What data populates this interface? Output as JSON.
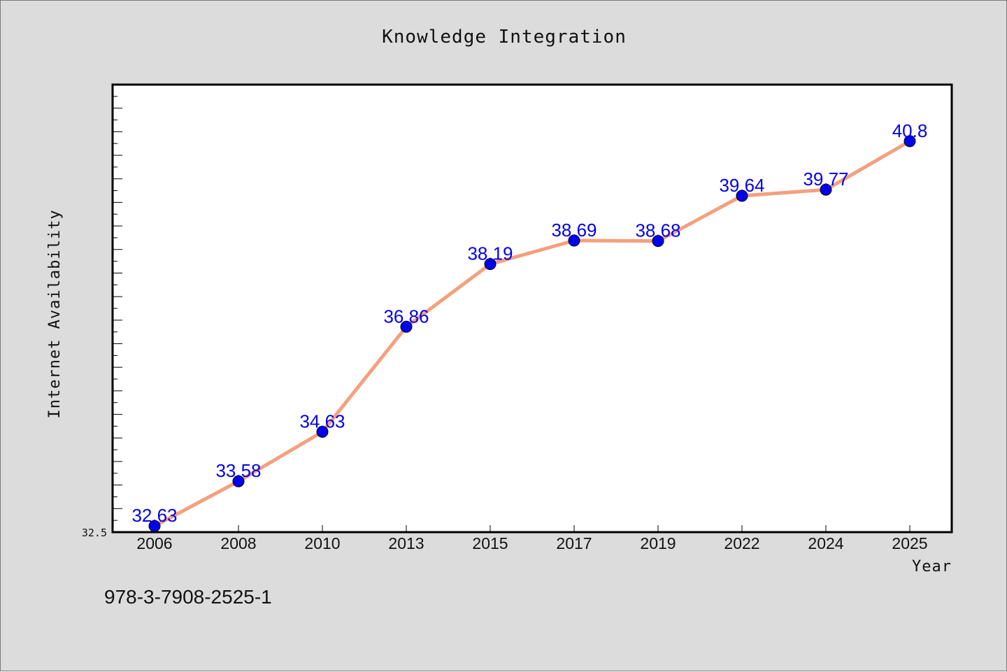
{
  "footer_text": "978-3-7908-2525-1",
  "colors": {
    "background": "#dcdcdc",
    "plot_background": "#ffffff",
    "line": "#f4a07f",
    "marker": "#0000ee",
    "data_label": "#0000ee"
  },
  "chart_data": {
    "type": "line",
    "title": "Knowledge Integration",
    "xlabel": "Year",
    "ylabel": "Internet Availability",
    "categories": [
      "2006",
      "2008",
      "2010",
      "2013",
      "2015",
      "2017",
      "2019",
      "2022",
      "2024",
      "2025"
    ],
    "series": [
      {
        "values": [
          32.63,
          33.58,
          34.63,
          36.86,
          38.19,
          38.69,
          38.68,
          39.64,
          39.77,
          40.8
        ],
        "labels": [
          "32.63",
          "33.58",
          "34.63",
          "36.86",
          "38.19",
          "38.69",
          "38.68",
          "39.64",
          "39.77",
          "40.8"
        ],
        "marker": "circle"
      }
    ],
    "y_tick_label": "32.5",
    "ylim": [
      32.5,
      42.0
    ],
    "grid": false,
    "legend": "none"
  }
}
